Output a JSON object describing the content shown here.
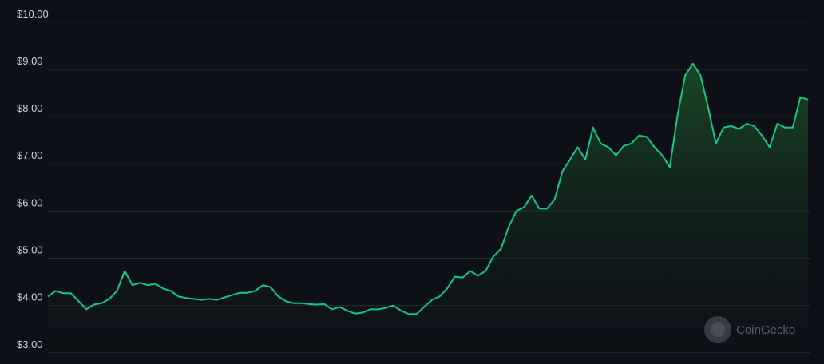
{
  "chart_data": {
    "type": "area",
    "yticks": [
      {
        "value": 10,
        "label": "$10.00"
      },
      {
        "value": 9,
        "label": "$9.00"
      },
      {
        "value": 8,
        "label": "$8.00"
      },
      {
        "value": 7,
        "label": "$7.00"
      },
      {
        "value": 6,
        "label": "$6.00"
      },
      {
        "value": 5,
        "label": "$5.00"
      },
      {
        "value": 4,
        "label": "$4.00"
      },
      {
        "value": 3,
        "label": "$3.00"
      }
    ],
    "ylim": [
      2.76,
      10.47
    ],
    "grid": true,
    "color": "#16c784",
    "watermark": "CoinGecko",
    "values": [
      4.19,
      4.31,
      4.26,
      4.26,
      4.09,
      3.92,
      4.02,
      4.05,
      4.14,
      4.31,
      4.73,
      4.43,
      4.48,
      4.43,
      4.46,
      4.36,
      4.31,
      4.19,
      4.16,
      4.14,
      4.12,
      4.14,
      4.12,
      4.17,
      4.22,
      4.27,
      4.27,
      4.31,
      4.43,
      4.39,
      4.19,
      4.09,
      4.05,
      4.05,
      4.03,
      4.02,
      4.03,
      3.92,
      3.97,
      3.89,
      3.83,
      3.85,
      3.92,
      3.92,
      3.95,
      4.0,
      3.89,
      3.82,
      3.82,
      3.97,
      4.12,
      4.19,
      4.36,
      4.61,
      4.59,
      4.73,
      4.63,
      4.73,
      5.03,
      5.2,
      5.66,
      6.0,
      6.08,
      6.33,
      6.05,
      6.05,
      6.25,
      6.84,
      7.09,
      7.35,
      7.09,
      7.77,
      7.43,
      7.35,
      7.18,
      7.38,
      7.43,
      7.6,
      7.57,
      7.35,
      7.18,
      6.93,
      8.02,
      8.87,
      9.12,
      8.87,
      8.19,
      7.43,
      7.77,
      7.8,
      7.74,
      7.85,
      7.8,
      7.6,
      7.35,
      7.85,
      7.77,
      7.77,
      8.41,
      8.36
    ]
  }
}
